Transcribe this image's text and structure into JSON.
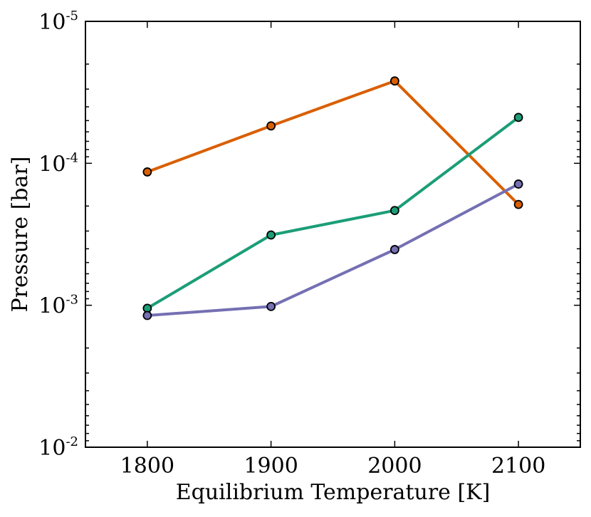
{
  "chart_data": {
    "type": "line",
    "title": "",
    "xlabel": "Equilibrium Temperature [K]",
    "ylabel": "Pressure [bar]",
    "x": [
      1800,
      1900,
      2000,
      2100
    ],
    "xlim": [
      1750,
      2150
    ],
    "xticks": [
      1800,
      1900,
      2000,
      2100
    ],
    "x_tick_labels": [
      "1800",
      "1900",
      "2000",
      "2100"
    ],
    "yscale": "log",
    "y_inverted": true,
    "ylim": [
      1e-05,
      0.01
    ],
    "yticks": [
      {
        "value": 1e-05,
        "base": "10",
        "exp": "-5"
      },
      {
        "value": 0.0001,
        "base": "10",
        "exp": "-4"
      },
      {
        "value": 0.001,
        "base": "10",
        "exp": "-3"
      },
      {
        "value": 0.01,
        "base": "10",
        "exp": "-2"
      }
    ],
    "grid": false,
    "series": [
      {
        "name": "orange",
        "color": "#d95f02",
        "values": [
          0.000115,
          5.45e-05,
          2.63e-05,
          0.000195
        ]
      },
      {
        "name": "green",
        "color": "#1b9e77",
        "values": [
          0.00105,
          0.00032,
          0.000215,
          4.75e-05
        ]
      },
      {
        "name": "purple",
        "color": "#7570b3",
        "values": [
          0.00118,
          0.00102,
          0.000405,
          0.00014
        ]
      }
    ]
  }
}
